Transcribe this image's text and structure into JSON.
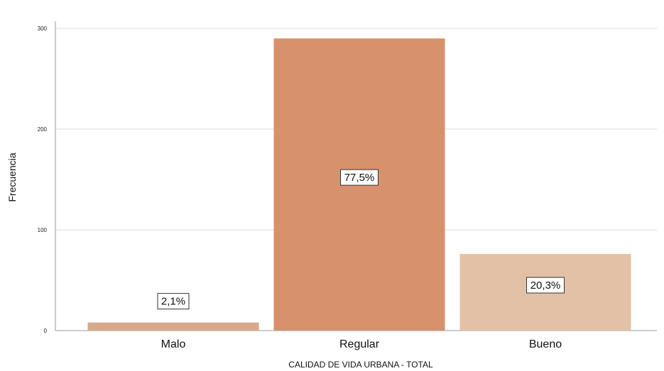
{
  "chart_data": {
    "type": "bar",
    "categories": [
      "Malo",
      "Regular",
      "Bueno"
    ],
    "values": [
      8,
      290,
      76
    ],
    "data_labels": [
      "2,1%",
      "77,5%",
      "20,3%"
    ],
    "colors": [
      "#d8a98a",
      "#d8916d",
      "#e3c1a7"
    ],
    "grid_color": "#d9d9d9",
    "title": "",
    "xlabel": "CALIDAD DE VIDA URBANA - TOTAL",
    "ylabel": "Frecuencia",
    "ylim": [
      0,
      300
    ],
    "yticks": [
      0,
      100,
      200,
      300
    ],
    "ytick_labels": [
      "0",
      "100",
      "200",
      "300"
    ],
    "grid": true
  }
}
